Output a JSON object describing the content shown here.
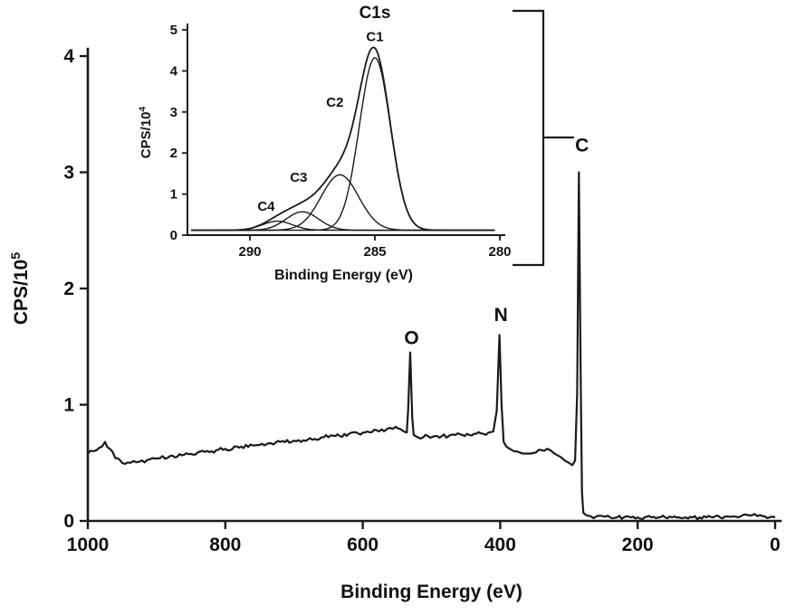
{
  "figure": {
    "background": "#ffffff",
    "ink_color": "#1a1a1a",
    "description": "XPS survey spectrum (CPS/10^5 vs Binding Energy) with O, N, C peaks and a C1s high-resolution inset showing deconvoluted components C1-C4",
    "bracket_connector": true
  },
  "chart_data": [
    {
      "id": "survey",
      "type": "line",
      "title": "",
      "xlabel": "Binding Energy (eV)",
      "ylabel": {
        "base": "CPS/10",
        "sup": "5"
      },
      "xlim": [
        1000,
        0
      ],
      "ylim": [
        0,
        4
      ],
      "x_ticks": [
        1000,
        800,
        600,
        400,
        200,
        0
      ],
      "y_ticks": [
        0,
        1,
        2,
        3,
        4
      ],
      "grid": false,
      "legend": false,
      "series": [
        {
          "name": "survey-spectrum",
          "points": [
            [
              1000,
              0.58
            ],
            [
              992,
              0.6
            ],
            [
              983,
              0.63
            ],
            [
              975,
              0.68
            ],
            [
              968,
              0.62
            ],
            [
              960,
              0.54
            ],
            [
              950,
              0.5
            ],
            [
              938,
              0.5
            ],
            [
              925,
              0.51
            ],
            [
              910,
              0.53
            ],
            [
              895,
              0.54
            ],
            [
              880,
              0.56
            ],
            [
              860,
              0.57
            ],
            [
              840,
              0.59
            ],
            [
              820,
              0.6
            ],
            [
              800,
              0.62
            ],
            [
              780,
              0.63
            ],
            [
              760,
              0.65
            ],
            [
              740,
              0.66
            ],
            [
              720,
              0.68
            ],
            [
              700,
              0.69
            ],
            [
              680,
              0.7
            ],
            [
              660,
              0.72
            ],
            [
              640,
              0.73
            ],
            [
              620,
              0.75
            ],
            [
              600,
              0.76
            ],
            [
              580,
              0.78
            ],
            [
              565,
              0.79
            ],
            [
              552,
              0.81
            ],
            [
              545,
              0.79
            ],
            [
              540,
              0.77
            ],
            [
              536,
              0.76
            ],
            [
              534,
              0.95
            ],
            [
              531,
              1.45
            ],
            [
              528,
              0.9
            ],
            [
              526,
              0.74
            ],
            [
              520,
              0.72
            ],
            [
              512,
              0.72
            ],
            [
              505,
              0.73
            ],
            [
              495,
              0.73
            ],
            [
              485,
              0.73
            ],
            [
              475,
              0.73
            ],
            [
              465,
              0.74
            ],
            [
              455,
              0.74
            ],
            [
              445,
              0.74
            ],
            [
              435,
              0.75
            ],
            [
              425,
              0.75
            ],
            [
              417,
              0.76
            ],
            [
              410,
              0.77
            ],
            [
              405,
              0.95
            ],
            [
              401,
              1.6
            ],
            [
              398,
              1.0
            ],
            [
              395,
              0.68
            ],
            [
              391,
              0.64
            ],
            [
              386,
              0.62
            ],
            [
              380,
              0.6
            ],
            [
              372,
              0.59
            ],
            [
              364,
              0.58
            ],
            [
              356,
              0.58
            ],
            [
              348,
              0.59
            ],
            [
              340,
              0.61
            ],
            [
              332,
              0.62
            ],
            [
              325,
              0.6
            ],
            [
              318,
              0.57
            ],
            [
              312,
              0.55
            ],
            [
              306,
              0.52
            ],
            [
              300,
              0.5
            ],
            [
              295,
              0.48
            ],
            [
              291,
              0.52
            ],
            [
              288,
              1.1
            ],
            [
              285.5,
              3.0
            ],
            [
              283,
              1.3
            ],
            [
              281,
              0.25
            ],
            [
              279,
              0.07
            ],
            [
              275,
              0.05
            ],
            [
              268,
              0.04
            ],
            [
              260,
              0.04
            ],
            [
              250,
              0.04
            ],
            [
              240,
              0.03
            ],
            [
              230,
              0.03
            ],
            [
              220,
              0.03
            ],
            [
              210,
              0.03
            ],
            [
              200,
              0.03
            ],
            [
              190,
              0.03
            ],
            [
              180,
              0.03
            ],
            [
              170,
              0.03
            ],
            [
              160,
              0.03
            ],
            [
              150,
              0.03
            ],
            [
              140,
              0.03
            ],
            [
              130,
              0.03
            ],
            [
              120,
              0.03
            ],
            [
              110,
              0.03
            ],
            [
              100,
              0.03
            ],
            [
              90,
              0.03
            ],
            [
              80,
              0.03
            ],
            [
              70,
              0.04
            ],
            [
              60,
              0.04
            ],
            [
              50,
              0.04
            ],
            [
              40,
              0.05
            ],
            [
              30,
              0.06
            ],
            [
              22,
              0.05
            ],
            [
              15,
              0.04
            ],
            [
              8,
              0.03
            ],
            [
              0,
              0.03
            ]
          ]
        }
      ],
      "annotations": [
        {
          "label": "O",
          "x": 529,
          "y": 1.52
        },
        {
          "label": "N",
          "x": 399,
          "y": 1.72
        },
        {
          "label": "C",
          "x": 281,
          "y": 3.18
        }
      ]
    },
    {
      "id": "c1s_inset",
      "type": "line",
      "title": "C1s",
      "xlabel": "Binding Energy (eV)",
      "ylabel": {
        "base": "CPS/10",
        "sup": "4"
      },
      "xlim": [
        292.5,
        280
      ],
      "ylim": [
        0,
        5
      ],
      "x_ticks": [
        290,
        285,
        280
      ],
      "y_ticks": [
        0,
        1,
        2,
        3,
        4,
        5
      ],
      "grid": false,
      "legend": false,
      "baseline": 0.12,
      "components": [
        {
          "name": "C1",
          "center": 285.0,
          "amplitude": 4.2,
          "sigma": 0.62
        },
        {
          "name": "C2",
          "center": 286.4,
          "amplitude": 1.35,
          "sigma": 0.75
        },
        {
          "name": "C3",
          "center": 287.9,
          "amplitude": 0.45,
          "sigma": 0.65
        },
        {
          "name": "C4",
          "center": 288.9,
          "amplitude": 0.22,
          "sigma": 0.6
        }
      ],
      "annotations": [
        {
          "label": "C1",
          "x": 285.0,
          "y": 4.72
        },
        {
          "label": "C2",
          "x": 286.6,
          "y": 3.13
        },
        {
          "label": "C3",
          "x": 288.05,
          "y": 1.3
        },
        {
          "label": "C4",
          "x": 289.35,
          "y": 0.6
        }
      ]
    }
  ]
}
